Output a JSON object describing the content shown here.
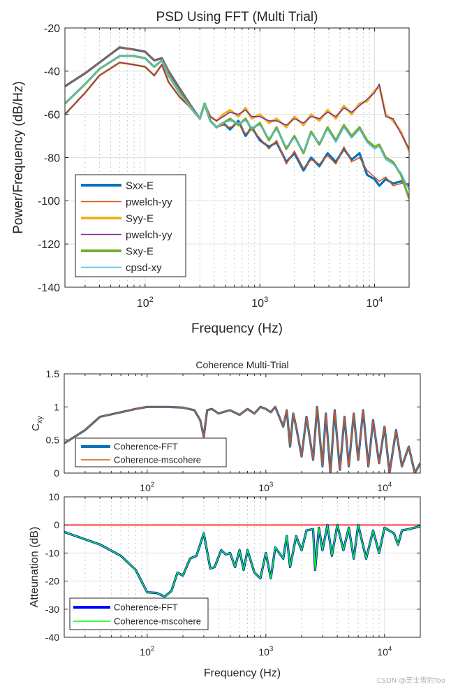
{
  "chart_data": [
    {
      "type": "line",
      "title": "PSD Using FFT (Multi Trial)",
      "xlabel": "Frequency (Hz)",
      "ylabel": "Power/Frequency (dB/Hz)",
      "xscale": "log",
      "xlim": [
        20,
        20000
      ],
      "ylim": [
        -140,
        -20
      ],
      "x_ticks": [
        100,
        1000,
        10000
      ],
      "x_tick_labels": [
        "10^2",
        "10^3",
        "10^4"
      ],
      "y_ticks": [
        -140,
        -120,
        -100,
        -80,
        -60,
        -40,
        -20
      ],
      "y_tick_labels": [
        "-140",
        "-120",
        "-100",
        "-80",
        "-60",
        "-40",
        "-20"
      ],
      "grid": true,
      "minor_grid": true,
      "legend_position": "bottom-left",
      "x": [
        20,
        30,
        40,
        60,
        80,
        100,
        120,
        140,
        160,
        200,
        250,
        300,
        330,
        370,
        420,
        480,
        550,
        650,
        750,
        850,
        1000,
        1200,
        1400,
        1700,
        2000,
        2400,
        2800,
        3300,
        3900,
        4600,
        5400,
        6300,
        7400,
        8600,
        10000,
        11000,
        12500,
        14500,
        17000,
        20000
      ],
      "series": [
        {
          "name": "Sxx-E",
          "color": "#0072BD",
          "width": "thick",
          "values": [
            -47,
            -41,
            -36,
            -29,
            -30,
            -31,
            -35,
            -34,
            -40,
            -48,
            -56,
            -62,
            -55,
            -63,
            -66,
            -64,
            -67,
            -63,
            -70,
            -66,
            -72,
            -75,
            -73,
            -82,
            -78,
            -86,
            -80,
            -84,
            -78,
            -82,
            -76,
            -81,
            -78,
            -88,
            -90,
            -93,
            -90,
            -92,
            -91,
            -93
          ]
        },
        {
          "name": "pwelch-yy",
          "color": "#D95319",
          "width": "thin",
          "values": [
            -47,
            -41,
            -36,
            -29,
            -30,
            -31,
            -35,
            -34,
            -40,
            -48,
            -56,
            -62,
            -55,
            -63,
            -66,
            -65,
            -66,
            -64,
            -69,
            -67,
            -71,
            -76,
            -72,
            -83,
            -77,
            -85,
            -81,
            -83,
            -79,
            -83,
            -75,
            -82,
            -80,
            -86,
            -89,
            -91,
            -89,
            -93,
            -92,
            -92
          ]
        },
        {
          "name": "Syy-E",
          "color": "#EDB120",
          "width": "thick",
          "values": [
            -60,
            -50,
            -42,
            -36,
            -37,
            -38,
            -42,
            -37,
            -45,
            -52,
            -57,
            -62,
            -55,
            -61,
            -63,
            -60,
            -58,
            -61,
            -57,
            -62,
            -60,
            -64,
            -62,
            -66,
            -61,
            -65,
            -60,
            -63,
            -58,
            -62,
            -56,
            -60,
            -55,
            -54,
            -49,
            -47,
            -60,
            -63,
            -68,
            -77
          ]
        },
        {
          "name": "pwelch-yy",
          "color": "#7E2F8E",
          "width": "thin",
          "values": [
            -60,
            -50,
            -42,
            -36,
            -37,
            -38,
            -42,
            -37,
            -45,
            -52,
            -57,
            -62,
            -55,
            -61,
            -63,
            -61,
            -59,
            -60,
            -58,
            -61,
            -61,
            -63,
            -63,
            -65,
            -62,
            -64,
            -61,
            -62,
            -59,
            -61,
            -57,
            -59,
            -56,
            -53,
            -50,
            -46,
            -61,
            -62,
            -69,
            -76
          ]
        },
        {
          "name": "Sxy-E",
          "color": "#77AC30",
          "width": "thick",
          "values": [
            -55,
            -46,
            -39,
            -33,
            -33,
            -34,
            -38,
            -35,
            -42,
            -50,
            -57,
            -62,
            -55,
            -63,
            -66,
            -64,
            -62,
            -65,
            -62,
            -67,
            -64,
            -72,
            -66,
            -76,
            -70,
            -78,
            -68,
            -74,
            -66,
            -72,
            -65,
            -70,
            -66,
            -72,
            -75,
            -74,
            -80,
            -82,
            -88,
            -99
          ]
        },
        {
          "name": "cpsd-xy",
          "color": "#4DBEEE",
          "width": "thin",
          "values": [
            -55,
            -46,
            -39,
            -33,
            -33,
            -34,
            -38,
            -35,
            -42,
            -50,
            -57,
            -62,
            -55,
            -63,
            -66,
            -64,
            -63,
            -64,
            -63,
            -66,
            -65,
            -71,
            -67,
            -75,
            -71,
            -77,
            -69,
            -73,
            -67,
            -73,
            -66,
            -71,
            -67,
            -73,
            -76,
            -75,
            -81,
            -83,
            -87,
            -95
          ]
        }
      ]
    },
    {
      "type": "line",
      "title": "Coherence Multi-Trial",
      "xlabel": "",
      "ylabel": "C_xy",
      "xscale": "log",
      "xlim": [
        20,
        20000
      ],
      "ylim": [
        0,
        1.5
      ],
      "x_ticks": [
        100,
        1000,
        10000
      ],
      "x_tick_labels": [
        "10^2",
        "10^3",
        "10^4"
      ],
      "y_ticks": [
        0,
        0.5,
        1,
        1.5
      ],
      "y_tick_labels": [
        "0",
        "0.5",
        "1",
        "1.5"
      ],
      "grid": false,
      "legend_position": "bottom-left",
      "x": [
        20,
        30,
        40,
        60,
        80,
        100,
        150,
        200,
        250,
        280,
        300,
        320,
        350,
        400,
        450,
        500,
        600,
        700,
        800,
        900,
        1000,
        1100,
        1200,
        1400,
        1500,
        1600,
        1700,
        1800,
        2000,
        2200,
        2500,
        2700,
        3000,
        3200,
        3500,
        3800,
        4200,
        4600,
        5000,
        5500,
        6000,
        6600,
        7300,
        8000,
        9000,
        10000,
        11000,
        12500,
        14000,
        16000,
        18000,
        20000
      ],
      "series": [
        {
          "name": "Coherence-FFT",
          "color": "#0072BD",
          "width": "thick",
          "values": [
            0.45,
            0.65,
            0.85,
            0.92,
            0.97,
            1.0,
            1.0,
            0.99,
            0.95,
            0.8,
            0.55,
            0.95,
            0.97,
            0.9,
            0.93,
            0.95,
            0.88,
            0.97,
            0.9,
            1.0,
            0.97,
            0.92,
            1.0,
            0.7,
            0.95,
            0.4,
            0.9,
            0.7,
            0.25,
            0.85,
            0.2,
            1.0,
            0.1,
            0.9,
            0.0,
            0.95,
            0.05,
            0.85,
            0.1,
            0.9,
            0.2,
            0.95,
            0.1,
            0.8,
            0.15,
            0.7,
            0.0,
            0.65,
            0.1,
            0.4,
            0.0,
            0.15
          ]
        },
        {
          "name": "Coherence-mscohere",
          "color": "#D95319",
          "width": "thin",
          "values": [
            0.45,
            0.65,
            0.85,
            0.92,
            0.97,
            1.0,
            1.0,
            0.99,
            0.95,
            0.8,
            0.55,
            0.95,
            0.97,
            0.9,
            0.93,
            0.95,
            0.88,
            0.97,
            0.9,
            1.0,
            0.97,
            0.92,
            1.0,
            0.7,
            0.95,
            0.4,
            0.9,
            0.7,
            0.25,
            0.85,
            0.2,
            1.0,
            0.1,
            0.9,
            0.0,
            0.95,
            0.05,
            0.85,
            0.1,
            0.9,
            0.2,
            0.95,
            0.1,
            0.8,
            0.15,
            0.7,
            0.0,
            0.65,
            0.1,
            0.4,
            0.0,
            0.15
          ]
        }
      ]
    },
    {
      "type": "line",
      "title": "",
      "xlabel": "Frequency (Hz)",
      "ylabel": "Atteunation (dB)",
      "xscale": "log",
      "xlim": [
        20,
        20000
      ],
      "ylim": [
        -40,
        10
      ],
      "x_ticks": [
        100,
        1000,
        10000
      ],
      "x_tick_labels": [
        "10^2",
        "10^3",
        "10^4"
      ],
      "y_ticks": [
        -40,
        -30,
        -20,
        -10,
        0,
        10
      ],
      "y_tick_labels": [
        "-40",
        "-30",
        "-20",
        "-10",
        "0",
        "10"
      ],
      "grid": true,
      "minor_grid": true,
      "legend_position": "bottom-left",
      "x": [
        20,
        40,
        60,
        80,
        100,
        120,
        140,
        160,
        180,
        200,
        230,
        260,
        300,
        340,
        370,
        420,
        460,
        500,
        550,
        600,
        650,
        700,
        800,
        900,
        1000,
        1100,
        1200,
        1400,
        1500,
        1600,
        1800,
        2000,
        2200,
        2500,
        2600,
        2800,
        3000,
        3300,
        3600,
        4000,
        4500,
        5000,
        5500,
        6000,
        7000,
        8000,
        9000,
        10000,
        12000,
        13000,
        14000,
        16000,
        20000
      ],
      "reference_line": {
        "y": 0,
        "color": "#FF0000"
      },
      "series": [
        {
          "name": "Coherence-FFT",
          "color": "#0000FF",
          "width": "thick",
          "values": [
            -2.5,
            -7,
            -11,
            -16,
            -24,
            -24.2,
            -25.5,
            -23.5,
            -17,
            -18,
            -12,
            -11,
            -3,
            -15.5,
            -15,
            -9,
            -10.5,
            -10,
            -15,
            -9,
            -16,
            -9,
            -17,
            -19,
            -10,
            -19,
            -8,
            -12,
            -4,
            -15,
            -4,
            -9,
            -2,
            -1.5,
            -16,
            -1,
            -9,
            0,
            -11,
            0,
            -9,
            -1,
            -12,
            0,
            -12,
            -2,
            -10,
            -1,
            -3,
            -7,
            -2,
            -1.5,
            -0.5
          ]
        },
        {
          "name": "Coherence-mscohere",
          "color": "#00FF00",
          "width": "thin",
          "values": [
            -2.5,
            -7,
            -11,
            -16,
            -24,
            -24.2,
            -25.5,
            -23.5,
            -17,
            -18,
            -12,
            -11,
            -3,
            -15.5,
            -15,
            -9,
            -10.5,
            -10,
            -15,
            -9,
            -16,
            -9,
            -17,
            -19,
            -10,
            -19,
            -8,
            -12,
            -4,
            -15,
            -4,
            -9,
            -2,
            -1.5,
            -16,
            -1,
            -9,
            0,
            -11,
            0,
            -9,
            -1,
            -12,
            0,
            -12,
            -2,
            -10,
            -1,
            -3,
            -7,
            -2,
            -1.5,
            -0.5
          ]
        }
      ]
    }
  ],
  "watermark": "CSDN @芝士雪豹Too"
}
